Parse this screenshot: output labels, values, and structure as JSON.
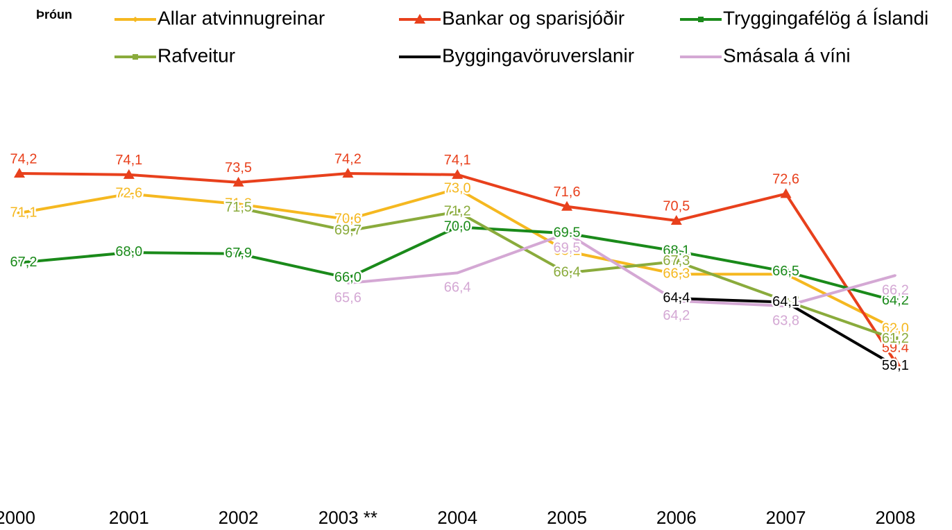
{
  "chart_data": {
    "type": "line",
    "title": "Þróun",
    "categories": [
      "2000",
      "2001",
      "2002",
      "2003 **",
      "2004",
      "2005",
      "2006",
      "2007",
      "2008"
    ],
    "ylim": [
      50,
      80
    ],
    "series": [
      {
        "name": "Allar atvinnugreinar",
        "color": "#f5b820",
        "marker": "diamond",
        "values": [
          71.1,
          72.6,
          71.8,
          70.6,
          73.0,
          68.1,
          66.3,
          66.3,
          62.0
        ],
        "value_labels": [
          "71,1",
          "72,6",
          "71.8",
          "70,6",
          "73,0",
          "68,1",
          "66,3",
          null,
          "62,0"
        ]
      },
      {
        "name": "Bankar og sparisjóðir",
        "color": "#e8401c",
        "marker": "triangle",
        "values": [
          74.2,
          74.1,
          73.5,
          74.2,
          74.1,
          71.6,
          70.5,
          72.6,
          59.4
        ],
        "value_labels": [
          "74,2",
          "74,1",
          "73,5",
          "74,2",
          "74,1",
          "71,6",
          "70,5",
          "72,6",
          "59.4"
        ]
      },
      {
        "name": "Tryggingafélög á Íslandi",
        "color": "#1a8a1a",
        "marker": "square",
        "values": [
          67.2,
          68.0,
          67.9,
          66.0,
          70.0,
          69.5,
          68.1,
          66.5,
          64.2
        ],
        "value_labels": [
          "67,2",
          "68,0",
          "67,9",
          "66,0",
          "70,0",
          "69.5",
          "68.1",
          "66,5",
          "64,2"
        ]
      },
      {
        "name": "Rafveitur",
        "color": "#8aab3c",
        "marker": "square",
        "values": [
          null,
          null,
          71.5,
          69.7,
          71.2,
          66.4,
          67.3,
          64.2,
          61.2
        ],
        "value_labels": [
          null,
          null,
          "71,5",
          "69,7",
          "71,2",
          "66,4",
          "67,3",
          "64,2",
          "61,2"
        ]
      },
      {
        "name": "Byggingavöruverslanir",
        "color": "#000000",
        "marker": "none",
        "values": [
          null,
          null,
          null,
          null,
          null,
          null,
          64.4,
          64.1,
          59.1
        ],
        "value_labels": [
          null,
          null,
          null,
          null,
          null,
          null,
          "64,4",
          "64,1",
          "59,1"
        ]
      },
      {
        "name": "Smásala á víni",
        "color": "#d4a8d4",
        "marker": "none",
        "values": [
          null,
          null,
          null,
          65.6,
          66.4,
          69.5,
          64.2,
          63.8,
          66.2
        ],
        "value_labels": [
          null,
          null,
          null,
          "65,6",
          "66,4",
          "69,5",
          "64,2",
          "63,8",
          "66,2"
        ]
      }
    ]
  }
}
